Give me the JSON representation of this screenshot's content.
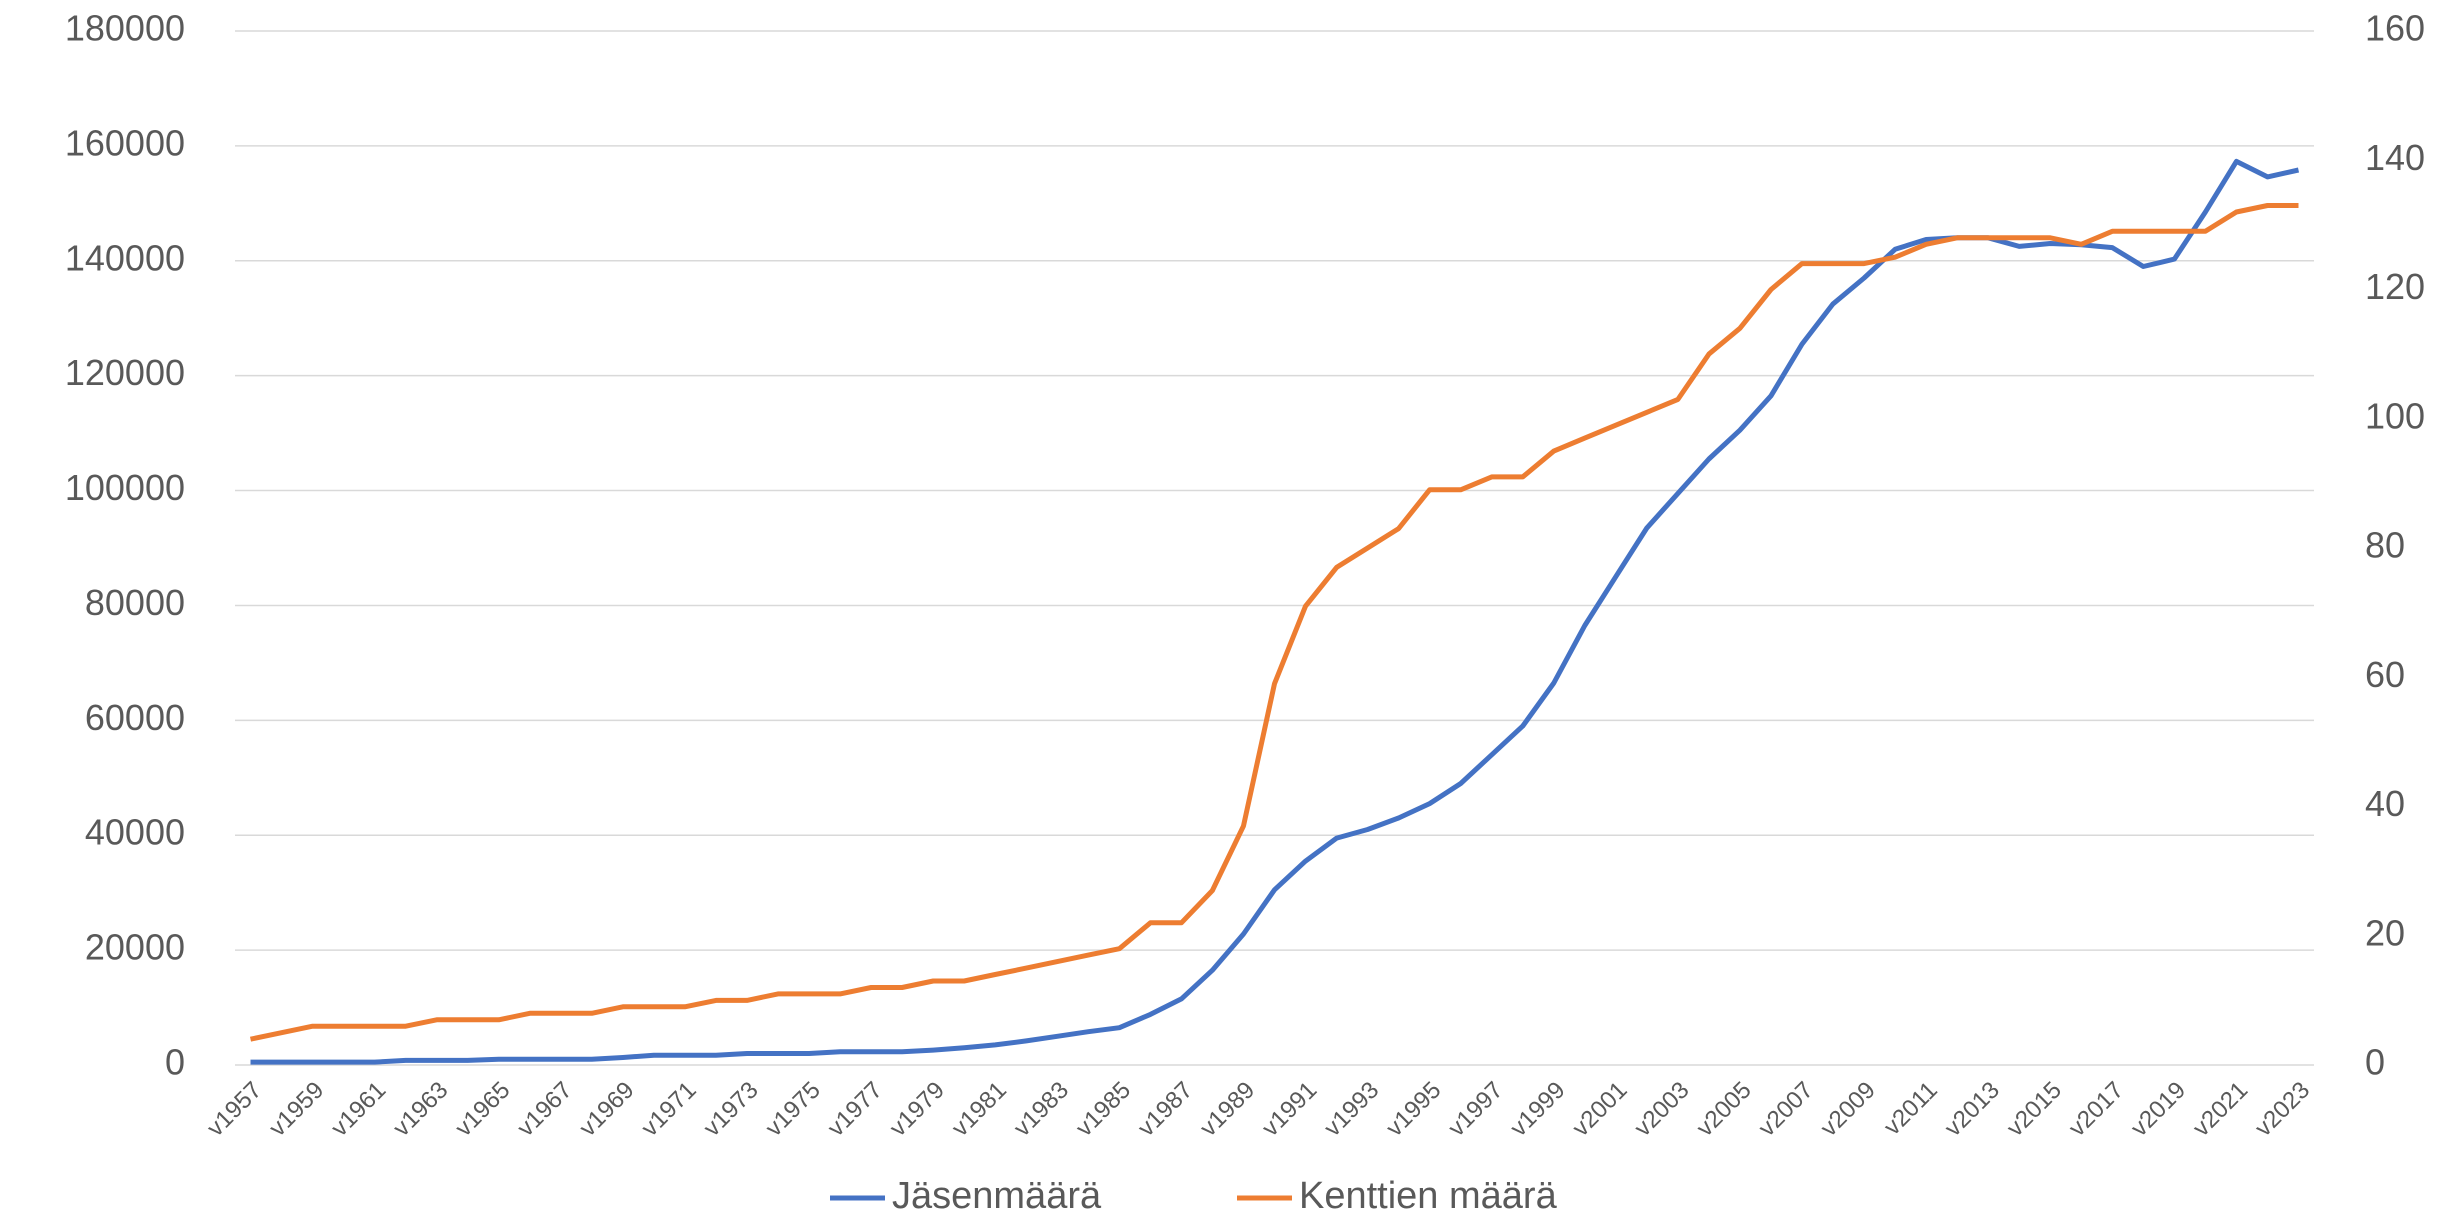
{
  "chart_data": {
    "type": "line",
    "categories": [
      "v1957",
      null,
      "v1959",
      null,
      "v1961",
      null,
      "v1963",
      null,
      "v1965",
      null,
      "v1967",
      null,
      "v1969",
      null,
      "v1971",
      null,
      "v1973",
      null,
      "v1975",
      null,
      "v1977",
      null,
      "v1979",
      null,
      "v1981",
      null,
      "v1983",
      null,
      "v1985",
      null,
      "v1987",
      null,
      "v1989",
      null,
      "v1991",
      null,
      "v1993",
      null,
      "v1995",
      null,
      "v1997",
      null,
      "v1999",
      null,
      "v2001",
      null,
      "v2003",
      null,
      "v2005",
      null,
      "v2007",
      null,
      "v2009",
      null,
      "v2011",
      null,
      "v2013",
      null,
      "v2015",
      null,
      "v2017",
      null,
      "v2019",
      null,
      "v2021",
      null,
      "v2023"
    ],
    "series": [
      {
        "name": "Jäsenmäärä",
        "color": "#4472c4",
        "values": [
          500,
          500,
          500,
          500,
          500,
          800,
          800,
          800,
          1000,
          1000,
          1000,
          1000,
          1300,
          1700,
          1700,
          1700,
          2000,
          2000,
          2000,
          2300,
          2300,
          2300,
          2600,
          3000,
          3500,
          4200,
          5000,
          5800,
          6500,
          8800,
          11500,
          16500,
          22800,
          30500,
          35500,
          39500,
          41000,
          43000,
          45500,
          49000,
          54000,
          59000,
          66500,
          76500,
          85000,
          93500,
          99500,
          105500,
          110500,
          116500,
          125500,
          132500,
          137000,
          142000,
          143700,
          144000,
          144000,
          142500,
          143000,
          142800,
          142300,
          139000,
          140300,
          148500,
          157300,
          154600,
          155800
        ]
      },
      {
        "name": "Kenttien määrä",
        "color": "#ed7d31",
        "axis": "y2",
        "values": [
          4,
          5,
          6,
          6,
          6,
          6,
          7,
          7,
          7,
          8,
          8,
          8,
          9,
          9,
          9,
          10,
          10,
          11,
          11,
          11,
          12,
          12,
          13,
          13,
          14,
          15,
          16,
          17,
          18,
          22,
          22,
          27,
          37,
          59,
          71,
          77,
          80,
          83,
          89,
          89,
          91,
          91,
          95,
          97,
          99,
          101,
          103,
          110,
          114,
          120,
          124,
          124,
          124,
          125,
          127,
          128,
          128,
          128,
          128,
          127,
          129,
          129,
          129,
          129,
          132,
          133,
          133
        ]
      }
    ],
    "ylim": [
      0,
      180000
    ],
    "yticks": [
      0,
      20000,
      40000,
      60000,
      80000,
      100000,
      120000,
      140000,
      160000,
      180000
    ],
    "y2lim": [
      0,
      160
    ],
    "y2ticks": [
      0,
      20,
      40,
      60,
      80,
      100,
      120,
      140,
      160
    ],
    "grid": true,
    "legend": "bottom"
  }
}
